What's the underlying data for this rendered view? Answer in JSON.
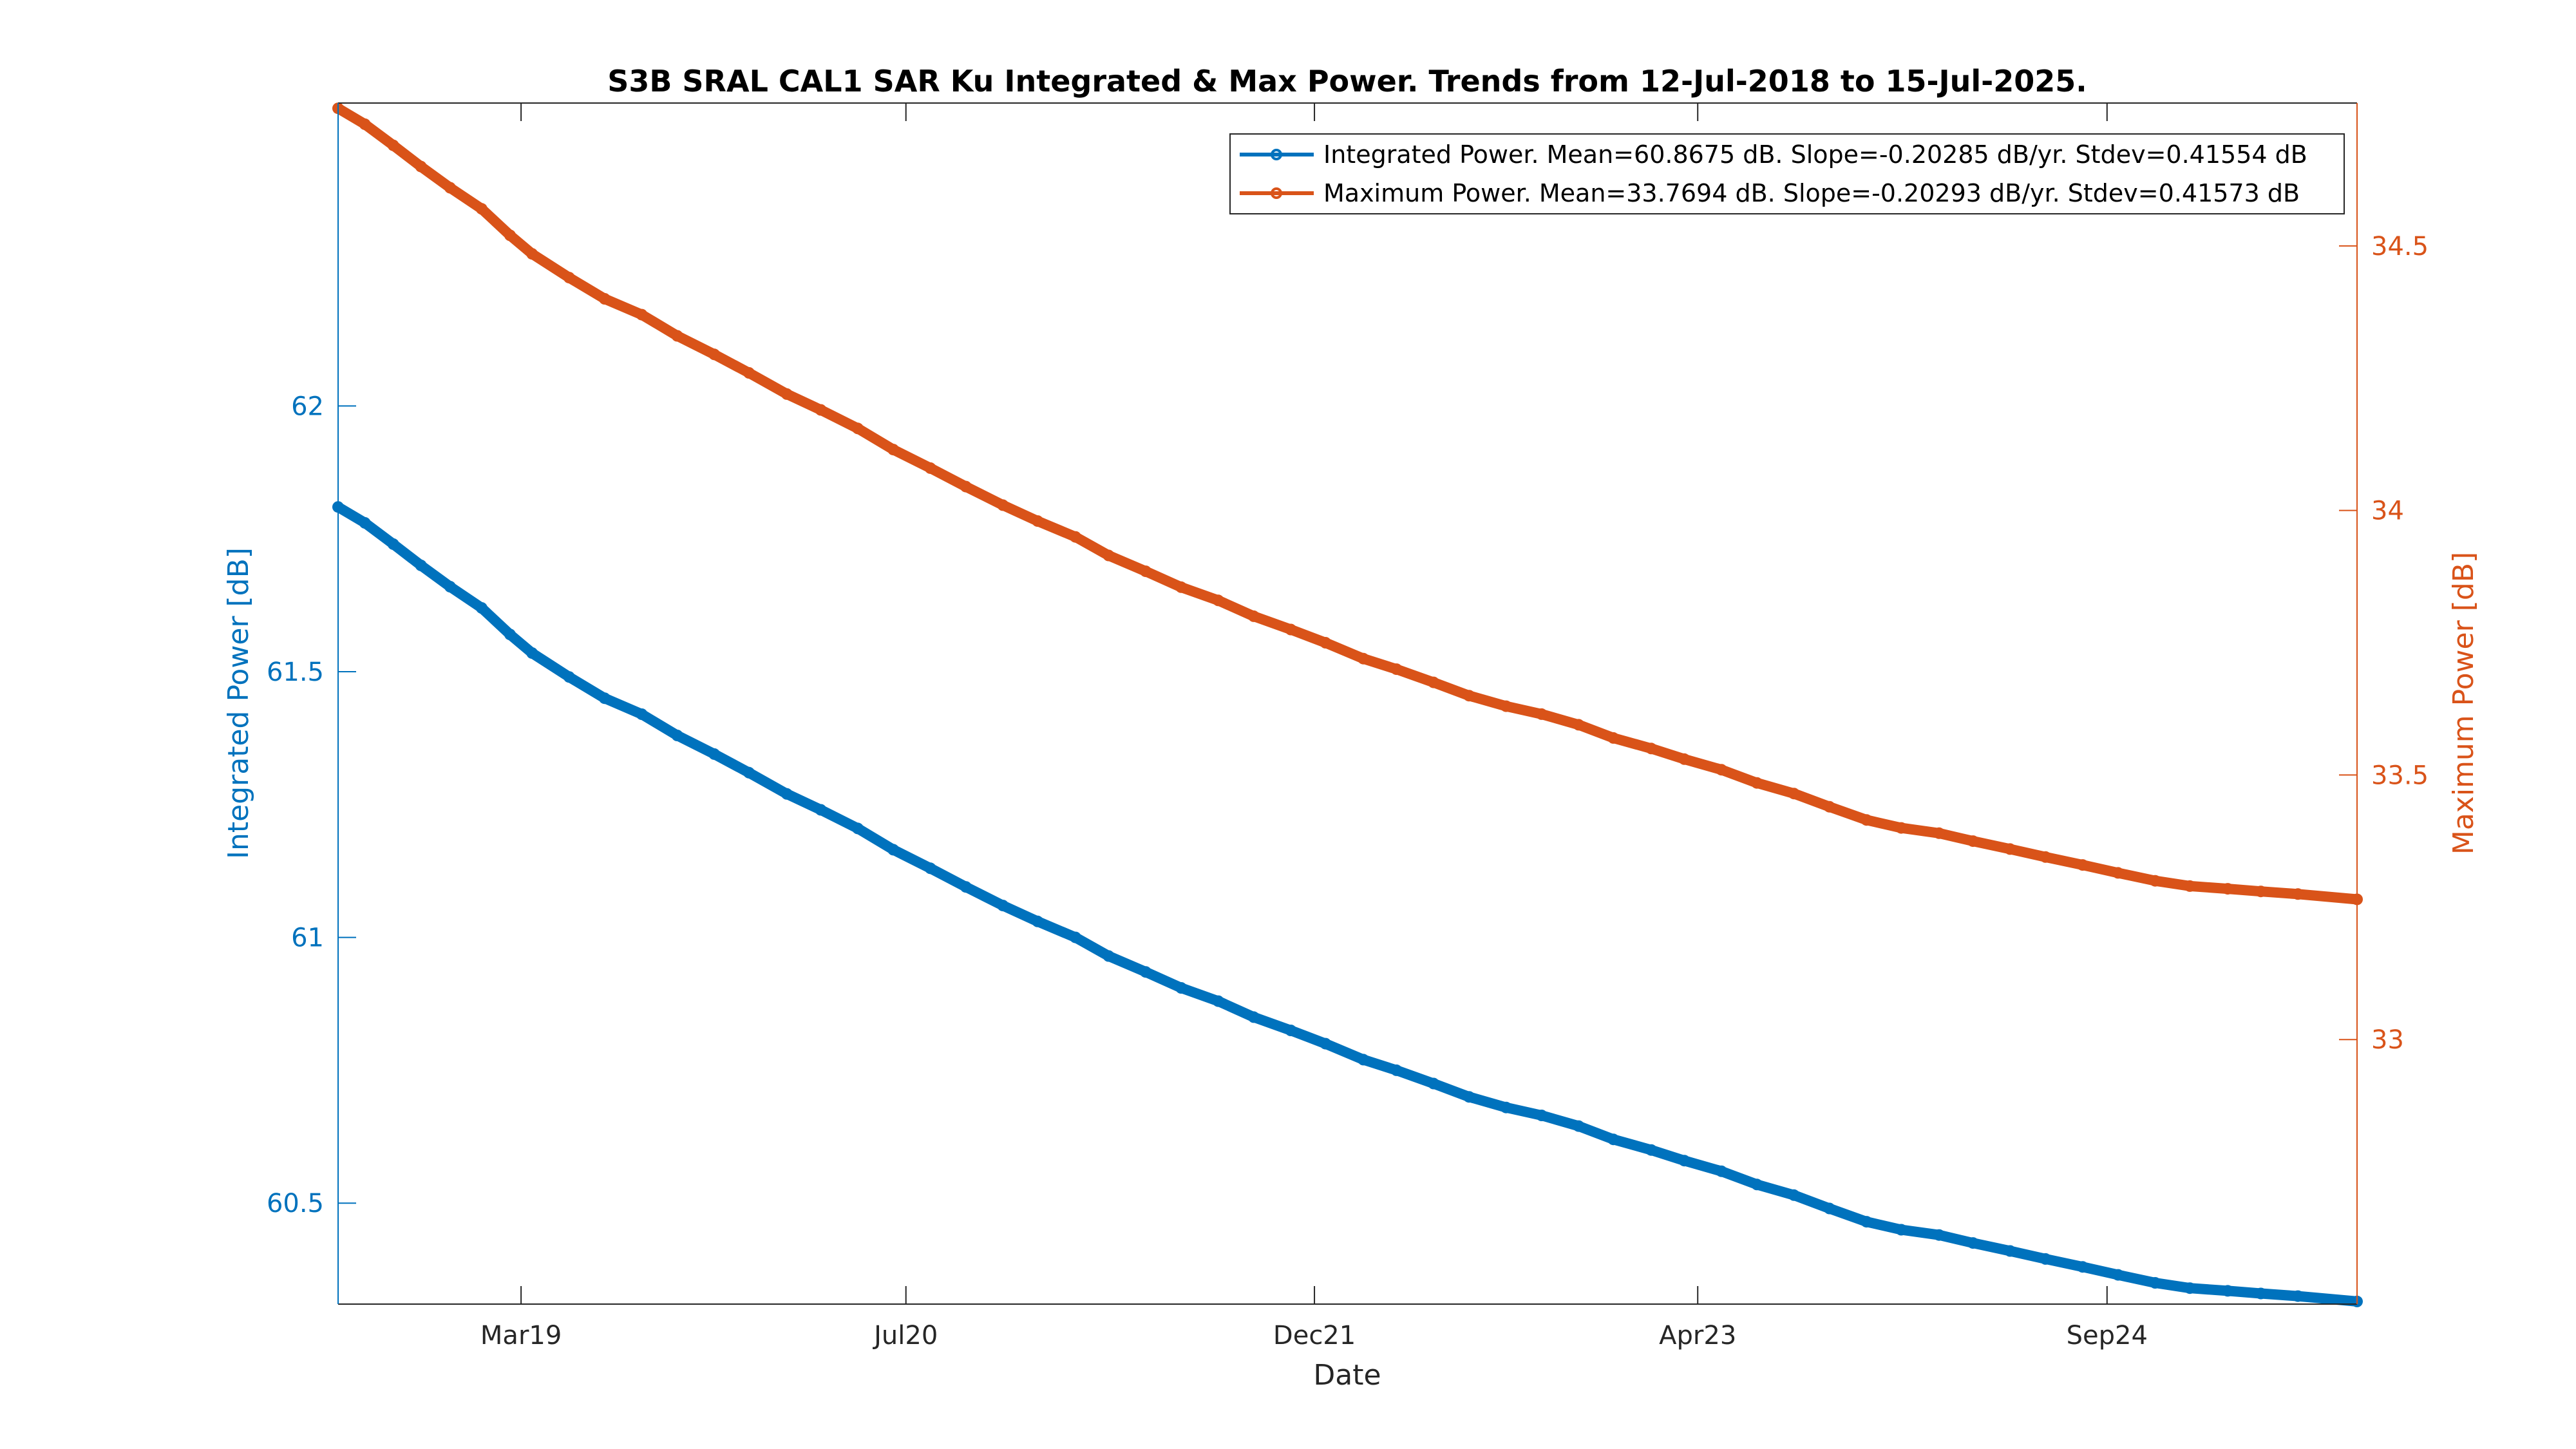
{
  "chart_data": {
    "type": "line",
    "title": "S3B SRAL CAL1 SAR Ku Integrated & Max Power. Trends from 12-Jul-2018 to 15-Jul-2025.",
    "xlabel": "Date",
    "ylabel_left": "Integrated Power [dB]",
    "ylabel_right": "Maximum Power [dB]",
    "xlim": [
      "2018-07-12",
      "2025-07-15"
    ],
    "ylim_left": [
      60.31,
      62.57
    ],
    "ylim_right": [
      32.5,
      34.77
    ],
    "x_ticks": [
      {
        "date": "2019-03-01",
        "label": "Mar19"
      },
      {
        "date": "2020-07-01",
        "label": "Jul20"
      },
      {
        "date": "2021-12-01",
        "label": "Dec21"
      },
      {
        "date": "2023-04-01",
        "label": "Apr23"
      },
      {
        "date": "2024-09-01",
        "label": "Sep24"
      }
    ],
    "y_ticks_left": [
      60.5,
      61,
      61.5,
      62
    ],
    "y_tick_labels_left": [
      "60.5",
      "61",
      "61.5",
      "62"
    ],
    "y_ticks_right": [
      33,
      33.5,
      34,
      34.5
    ],
    "y_tick_labels_right": [
      "33",
      "33.5",
      "34",
      "34.5"
    ],
    "grid": false,
    "legend_position": "top-right",
    "series": [
      {
        "name": "Integrated Power. Mean=60.8675 dB. Slope=-0.20285 dB/yr. Stdev=0.41554 dB",
        "axis": "left",
        "color": "#0072BD",
        "points": [
          [
            "2018-07-12",
            61.81
          ],
          [
            "2018-08-15",
            61.78
          ],
          [
            "2018-09-20",
            61.74
          ],
          [
            "2018-10-25",
            61.7
          ],
          [
            "2018-12-01",
            61.66
          ],
          [
            "2019-01-10",
            61.62
          ],
          [
            "2019-02-15",
            61.57
          ],
          [
            "2019-03-15",
            61.535
          ],
          [
            "2019-05-01",
            61.49
          ],
          [
            "2019-06-15",
            61.45
          ],
          [
            "2019-08-01",
            61.42
          ],
          [
            "2019-09-15",
            61.38
          ],
          [
            "2019-11-01",
            61.345
          ],
          [
            "2019-12-15",
            61.31
          ],
          [
            "2020-02-01",
            61.27
          ],
          [
            "2020-03-15",
            61.24
          ],
          [
            "2020-05-01",
            61.205
          ],
          [
            "2020-06-15",
            61.165
          ],
          [
            "2020-08-01",
            61.13
          ],
          [
            "2020-09-15",
            61.095
          ],
          [
            "2020-11-01",
            61.06
          ],
          [
            "2020-12-15",
            61.03
          ],
          [
            "2021-02-01",
            61.0
          ],
          [
            "2021-03-15",
            60.965
          ],
          [
            "2021-05-01",
            60.935
          ],
          [
            "2021-06-15",
            60.905
          ],
          [
            "2021-08-01",
            60.88
          ],
          [
            "2021-09-15",
            60.85
          ],
          [
            "2021-11-01",
            60.825
          ],
          [
            "2021-12-15",
            60.8
          ],
          [
            "2022-02-01",
            60.77
          ],
          [
            "2022-03-15",
            60.75
          ],
          [
            "2022-05-01",
            60.725
          ],
          [
            "2022-06-15",
            60.7
          ],
          [
            "2022-08-01",
            60.68
          ],
          [
            "2022-09-15",
            60.665
          ],
          [
            "2022-11-01",
            60.645
          ],
          [
            "2022-12-15",
            60.62
          ],
          [
            "2023-02-01",
            60.6
          ],
          [
            "2023-03-15",
            60.58
          ],
          [
            "2023-05-01",
            60.56
          ],
          [
            "2023-06-15",
            60.535
          ],
          [
            "2023-08-01",
            60.515
          ],
          [
            "2023-09-15",
            60.49
          ],
          [
            "2023-11-01",
            60.465
          ],
          [
            "2023-12-15",
            60.45
          ],
          [
            "2024-02-01",
            60.44
          ],
          [
            "2024-03-15",
            60.425
          ],
          [
            "2024-05-01",
            60.41
          ],
          [
            "2024-06-15",
            60.395
          ],
          [
            "2024-08-01",
            60.38
          ],
          [
            "2024-09-15",
            60.365
          ],
          [
            "2024-11-01",
            60.35
          ],
          [
            "2024-12-15",
            60.34
          ],
          [
            "2025-02-01",
            60.335
          ],
          [
            "2025-03-15",
            60.33
          ],
          [
            "2025-05-01",
            60.325
          ],
          [
            "2025-07-15",
            60.315
          ]
        ]
      },
      {
        "name": "Maximum Power. Mean=33.7694 dB. Slope=-0.20293 dB/yr. Stdev=0.41573 dB",
        "axis": "right",
        "color": "#D95319",
        "points": [
          [
            "2018-07-12",
            34.76
          ],
          [
            "2018-08-15",
            34.73
          ],
          [
            "2018-09-20",
            34.69
          ],
          [
            "2018-10-25",
            34.65
          ],
          [
            "2018-12-01",
            34.61
          ],
          [
            "2019-01-10",
            34.57
          ],
          [
            "2019-02-15",
            34.52
          ],
          [
            "2019-03-15",
            34.485
          ],
          [
            "2019-05-01",
            34.44
          ],
          [
            "2019-06-15",
            34.4
          ],
          [
            "2019-08-01",
            34.37
          ],
          [
            "2019-09-15",
            34.33
          ],
          [
            "2019-11-01",
            34.295
          ],
          [
            "2019-12-15",
            34.26
          ],
          [
            "2020-02-01",
            34.22
          ],
          [
            "2020-03-15",
            34.19
          ],
          [
            "2020-05-01",
            34.155
          ],
          [
            "2020-06-15",
            34.115
          ],
          [
            "2020-08-01",
            34.08
          ],
          [
            "2020-09-15",
            34.045
          ],
          [
            "2020-11-01",
            34.01
          ],
          [
            "2020-12-15",
            33.98
          ],
          [
            "2021-02-01",
            33.95
          ],
          [
            "2021-03-15",
            33.915
          ],
          [
            "2021-05-01",
            33.885
          ],
          [
            "2021-06-15",
            33.855
          ],
          [
            "2021-08-01",
            33.83
          ],
          [
            "2021-09-15",
            33.8
          ],
          [
            "2021-11-01",
            33.775
          ],
          [
            "2021-12-15",
            33.75
          ],
          [
            "2022-02-01",
            33.72
          ],
          [
            "2022-03-15",
            33.7
          ],
          [
            "2022-05-01",
            33.675
          ],
          [
            "2022-06-15",
            33.65
          ],
          [
            "2022-08-01",
            33.63
          ],
          [
            "2022-09-15",
            33.615
          ],
          [
            "2022-11-01",
            33.595
          ],
          [
            "2022-12-15",
            33.57
          ],
          [
            "2023-02-01",
            33.55
          ],
          [
            "2023-03-15",
            33.53
          ],
          [
            "2023-05-01",
            33.51
          ],
          [
            "2023-06-15",
            33.485
          ],
          [
            "2023-08-01",
            33.465
          ],
          [
            "2023-09-15",
            33.44
          ],
          [
            "2023-11-01",
            33.415
          ],
          [
            "2023-12-15",
            33.4
          ],
          [
            "2024-02-01",
            33.39
          ],
          [
            "2024-03-15",
            33.375
          ],
          [
            "2024-05-01",
            33.36
          ],
          [
            "2024-06-15",
            33.345
          ],
          [
            "2024-08-01",
            33.33
          ],
          [
            "2024-09-15",
            33.315
          ],
          [
            "2024-11-01",
            33.3
          ],
          [
            "2024-12-15",
            33.29
          ],
          [
            "2025-02-01",
            33.285
          ],
          [
            "2025-03-15",
            33.28
          ],
          [
            "2025-05-01",
            33.275
          ],
          [
            "2025-07-15",
            33.265
          ]
        ]
      }
    ]
  }
}
